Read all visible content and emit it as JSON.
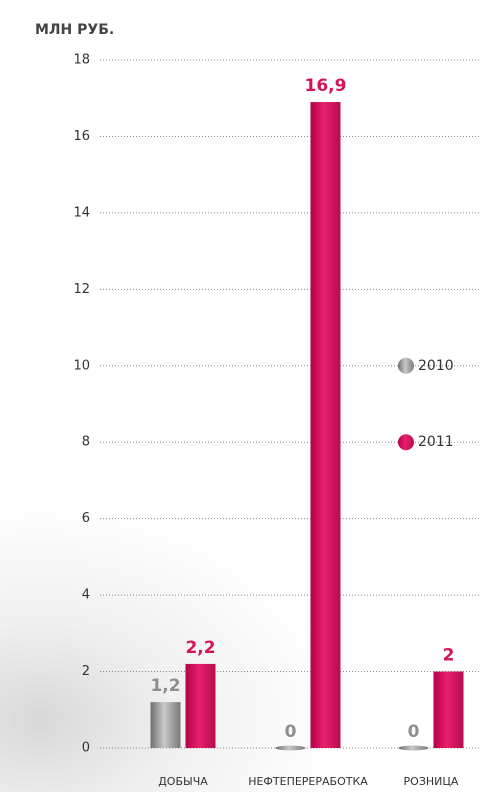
{
  "chart_data": {
    "type": "bar",
    "y_axis_label": "МЛН РУБ.",
    "categories": [
      "ДОБЫЧА",
      "НЕФТЕПЕРЕРАБОТКА",
      "РОЗНИЦА"
    ],
    "series": [
      {
        "name": "2010",
        "color": "#8e8e8e",
        "values": [
          1.2,
          0,
          0
        ],
        "value_labels": [
          "1,2",
          "0",
          "0"
        ]
      },
      {
        "name": "2011",
        "color": "#d4145a",
        "values": [
          2.2,
          16.9,
          2
        ],
        "value_labels": [
          "2,2",
          "16,9",
          "2"
        ]
      }
    ],
    "ylim": [
      0,
      18
    ],
    "yticks": [
      0,
      2,
      4,
      6,
      8,
      10,
      12,
      14,
      16,
      18
    ],
    "grid": true,
    "legend_position": "right"
  }
}
